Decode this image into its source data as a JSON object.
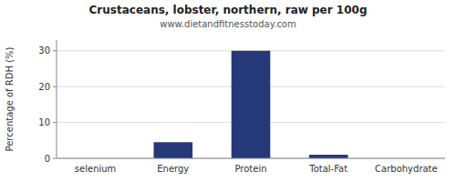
{
  "chart_data": {
    "type": "bar",
    "title": "Crustaceans, lobster, northern, raw per 100g",
    "subtitle": "www.dietandfitnesstoday.com",
    "ylabel": "Percentage of RDH (%)",
    "categories": [
      "selenium",
      "Energy",
      "Protein",
      "Total-Fat",
      "Carbohydrate"
    ],
    "values": [
      0,
      4.5,
      30,
      1.0,
      0
    ],
    "color": "#253878",
    "ylim": [
      0,
      33
    ],
    "yticks": [
      0,
      10,
      20,
      30
    ],
    "grid": true
  }
}
